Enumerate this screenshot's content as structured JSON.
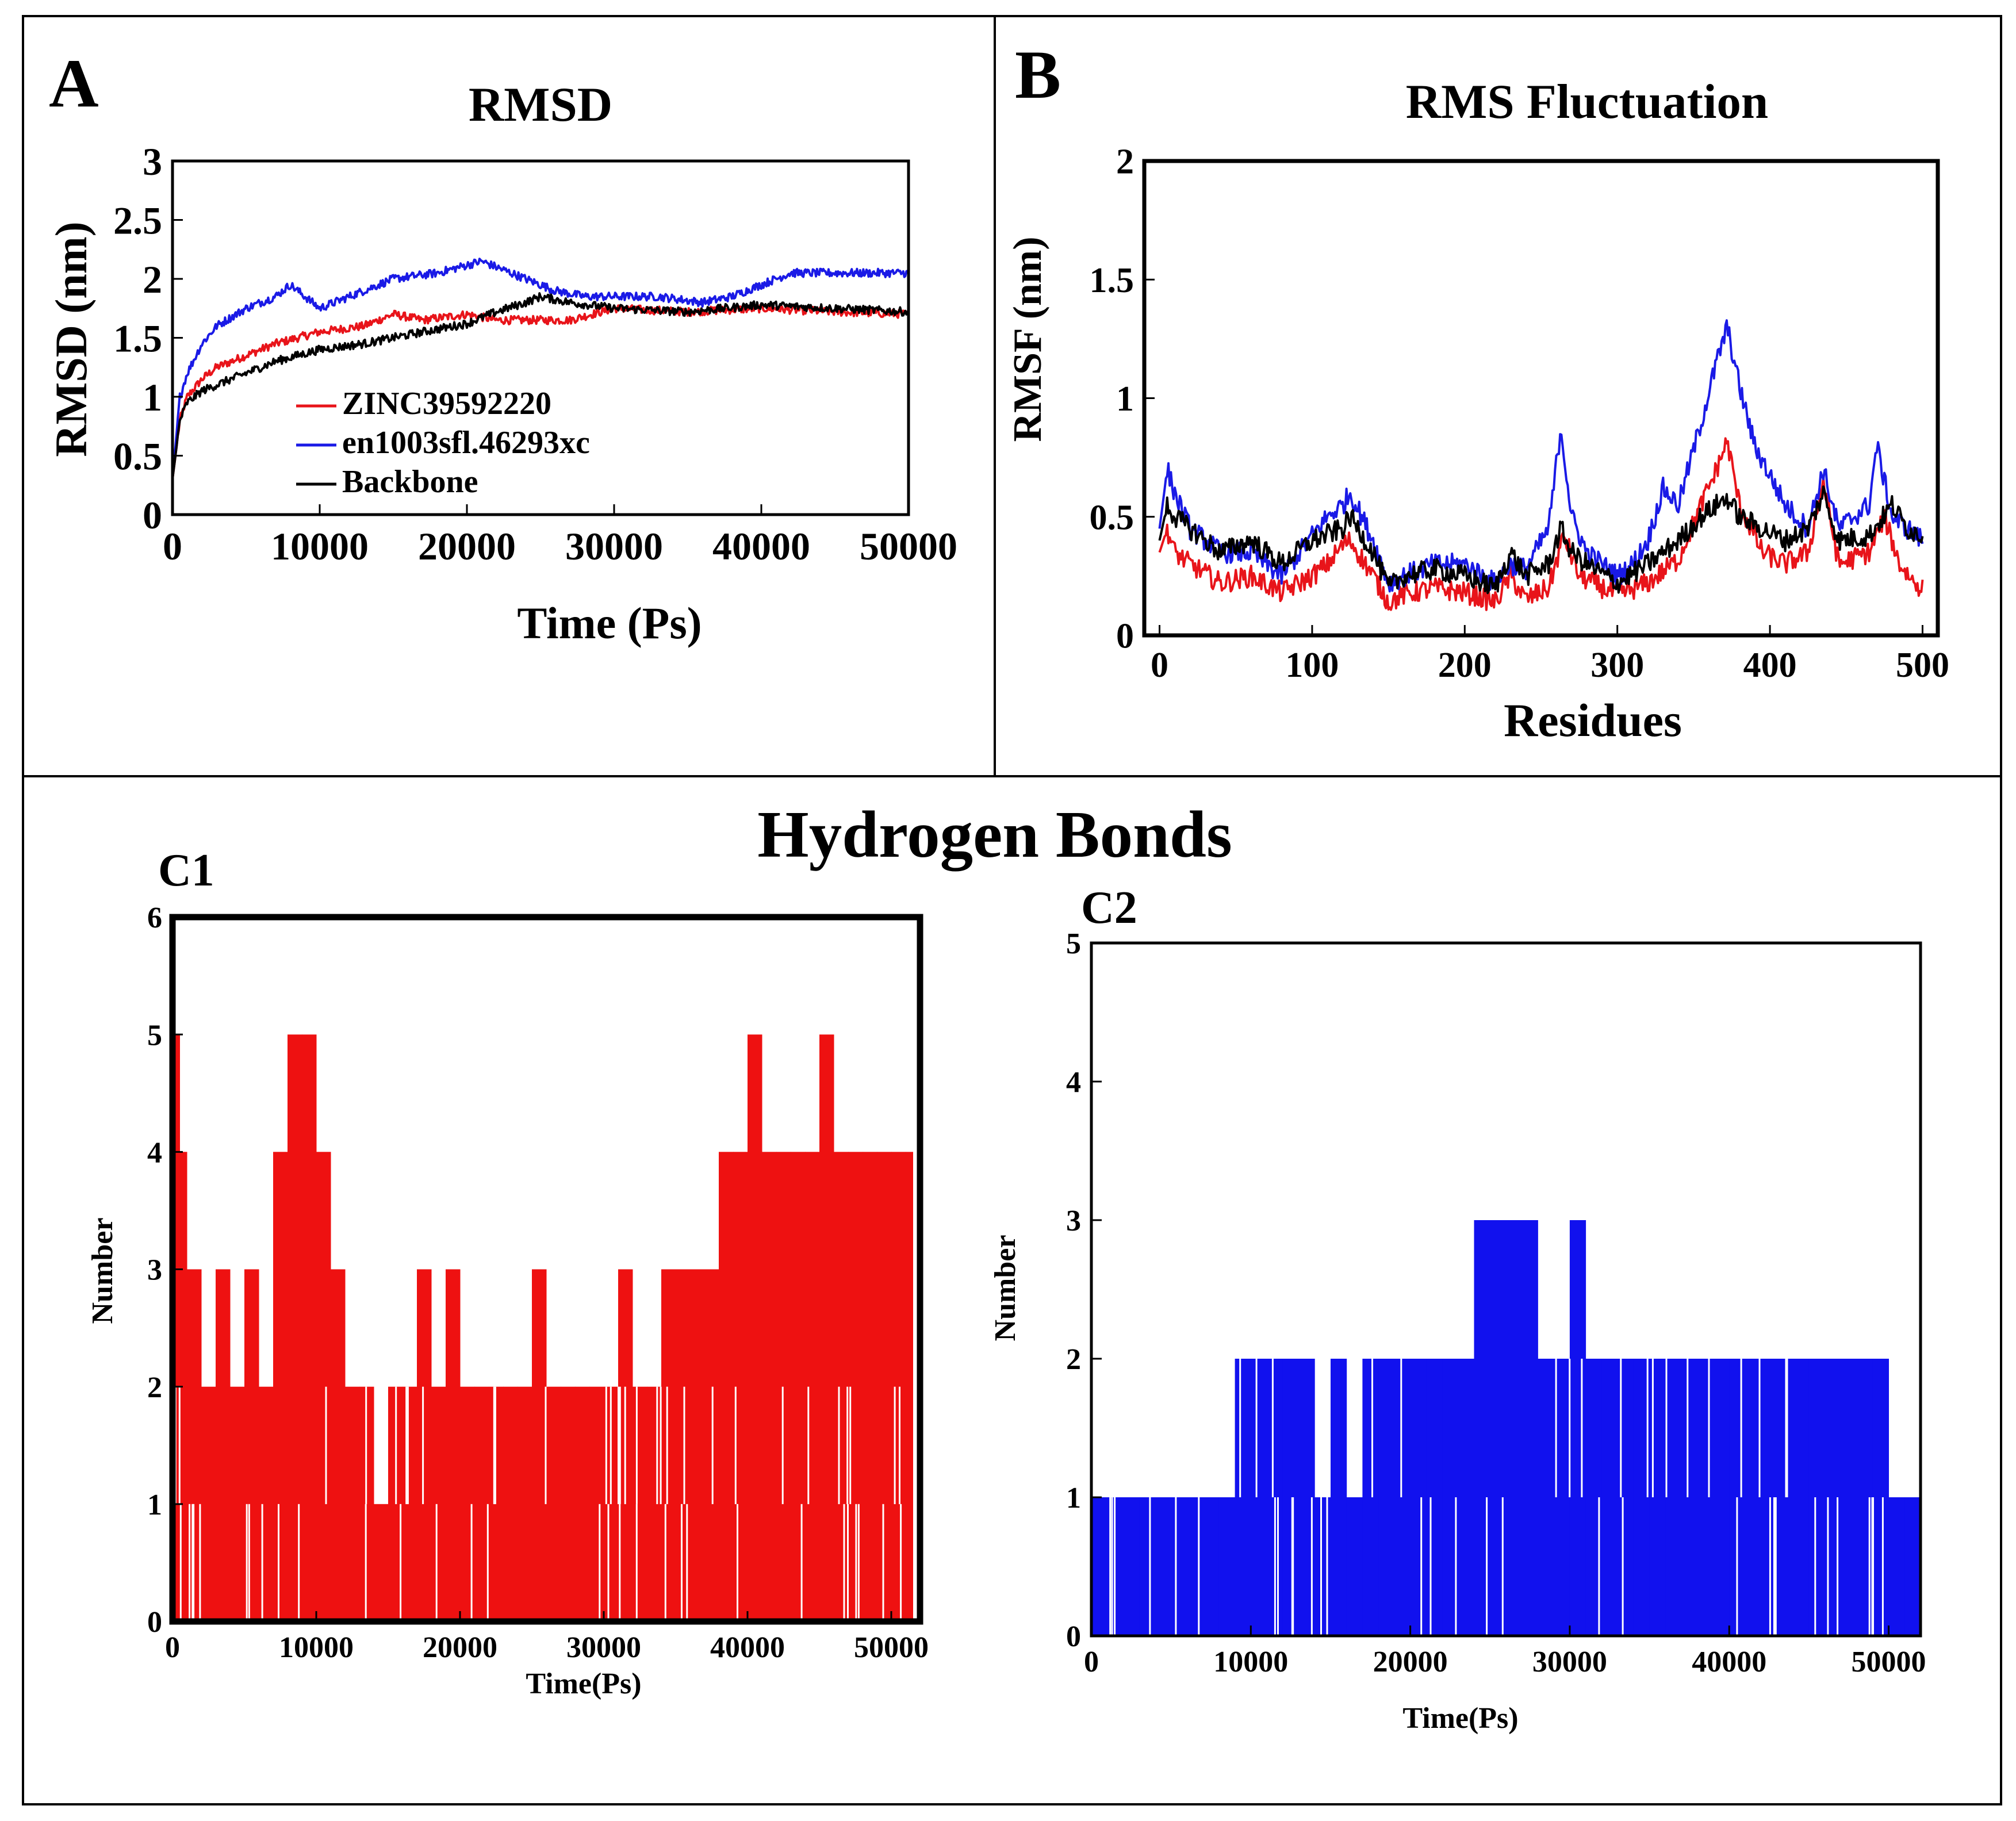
{
  "figure": {
    "panel_a_label": "A",
    "panel_b_label": "B",
    "section_c_title": "Hydrogen Bonds",
    "panel_c1_label": "C1",
    "panel_c2_label": "C2"
  },
  "chart_data": [
    {
      "id": "A",
      "type": "line",
      "title": "RMSD",
      "xlabel": "Time (Ps)",
      "ylabel": "RMSD (nm)",
      "xlim": [
        0,
        50000
      ],
      "ylim": [
        0,
        3
      ],
      "xticks": [
        0,
        10000,
        20000,
        30000,
        40000,
        50000
      ],
      "xtick_labels": [
        "0",
        "10000",
        "20000",
        "30000",
        "40000",
        "50000"
      ],
      "yticks": [
        0,
        0.5,
        1,
        1.5,
        2,
        2.5,
        3
      ],
      "ytick_labels": [
        "0",
        "0.5",
        "1",
        "1.5",
        "2",
        "2.5",
        "3"
      ],
      "legend": "inside center-left",
      "series": [
        {
          "name": "ZINC39592220",
          "color": "#e8141a",
          "x": [
            0,
            500,
            1000,
            2000,
            3000,
            5000,
            7000,
            10000,
            13000,
            15000,
            17000,
            20000,
            22000,
            25000,
            27000,
            30000,
            35000,
            40000,
            45000,
            50000
          ],
          "y": [
            0.3,
            0.8,
            1.0,
            1.15,
            1.25,
            1.35,
            1.45,
            1.55,
            1.6,
            1.7,
            1.65,
            1.7,
            1.65,
            1.65,
            1.65,
            1.75,
            1.72,
            1.75,
            1.72,
            1.7
          ]
        },
        {
          "name": "en1003sfl.46293xc",
          "color": "#1a1ae6",
          "x": [
            0,
            500,
            1000,
            2000,
            3000,
            5000,
            7000,
            8000,
            9000,
            10000,
            13000,
            15000,
            18000,
            21000,
            24000,
            26000,
            28000,
            30000,
            33000,
            36000,
            38000,
            40000,
            42000,
            45000,
            48000,
            50000
          ],
          "y": [
            0.3,
            1.0,
            1.2,
            1.45,
            1.6,
            1.75,
            1.85,
            1.95,
            1.85,
            1.75,
            1.9,
            2.0,
            2.05,
            2.15,
            2.0,
            1.9,
            1.85,
            1.85,
            1.85,
            1.8,
            1.85,
            1.95,
            2.05,
            2.05,
            2.05,
            2.05
          ]
        },
        {
          "name": "Backbone",
          "color": "#000000",
          "x": [
            0,
            500,
            1000,
            2000,
            3000,
            5000,
            7000,
            10000,
            13000,
            15000,
            17000,
            20000,
            22000,
            24000,
            25000,
            27000,
            30000,
            35000,
            40000,
            45000,
            50000
          ],
          "y": [
            0.3,
            0.8,
            0.95,
            1.05,
            1.1,
            1.2,
            1.3,
            1.4,
            1.45,
            1.5,
            1.55,
            1.62,
            1.72,
            1.8,
            1.85,
            1.8,
            1.75,
            1.72,
            1.78,
            1.75,
            1.72
          ]
        }
      ]
    },
    {
      "id": "B",
      "type": "line",
      "title": "RMS Fluctuation",
      "xlabel": "Residues",
      "ylabel": "RMSF (nm)",
      "xlim": [
        -10,
        510
      ],
      "ylim": [
        0,
        2
      ],
      "xticks": [
        0,
        100,
        200,
        300,
        400,
        500
      ],
      "xtick_labels": [
        "0",
        "100",
        "200",
        "300",
        "400",
        "500"
      ],
      "yticks": [
        0,
        0.5,
        1,
        1.5,
        2
      ],
      "ytick_labels": [
        "0",
        "0.5",
        "1",
        "1.5",
        "2"
      ],
      "series": [
        {
          "color": "#e8141a",
          "x": [
            0,
            5,
            10,
            20,
            40,
            60,
            80,
            100,
            110,
            120,
            125,
            140,
            150,
            160,
            180,
            200,
            220,
            230,
            240,
            255,
            265,
            275,
            300,
            320,
            340,
            355,
            365,
            372,
            380,
            395,
            410,
            425,
            435,
            445,
            465,
            475,
            485,
            495,
            500
          ],
          "y": [
            0.35,
            0.45,
            0.35,
            0.3,
            0.22,
            0.25,
            0.18,
            0.25,
            0.3,
            0.38,
            0.4,
            0.25,
            0.14,
            0.17,
            0.2,
            0.18,
            0.14,
            0.25,
            0.15,
            0.2,
            0.42,
            0.25,
            0.17,
            0.22,
            0.32,
            0.55,
            0.7,
            0.82,
            0.55,
            0.35,
            0.3,
            0.35,
            0.65,
            0.3,
            0.35,
            0.5,
            0.3,
            0.22,
            0.2
          ]
        },
        {
          "color": "#1a1ae6",
          "x": [
            0,
            5,
            10,
            20,
            40,
            60,
            80,
            100,
            110,
            120,
            125,
            140,
            150,
            160,
            180,
            200,
            220,
            230,
            240,
            255,
            263,
            270,
            280,
            300,
            310,
            320,
            330,
            340,
            355,
            365,
            372,
            380,
            390,
            410,
            425,
            435,
            445,
            465,
            470,
            480,
            490,
            500
          ],
          "y": [
            0.45,
            0.7,
            0.6,
            0.45,
            0.35,
            0.35,
            0.25,
            0.42,
            0.5,
            0.55,
            0.6,
            0.4,
            0.22,
            0.25,
            0.3,
            0.3,
            0.22,
            0.3,
            0.28,
            0.45,
            0.88,
            0.5,
            0.35,
            0.25,
            0.3,
            0.4,
            0.62,
            0.55,
            0.9,
            1.15,
            1.3,
            1.05,
            0.8,
            0.55,
            0.45,
            0.7,
            0.45,
            0.55,
            0.8,
            0.5,
            0.45,
            0.4
          ]
        },
        {
          "color": "#000000",
          "x": [
            0,
            5,
            10,
            20,
            40,
            60,
            80,
            100,
            120,
            125,
            140,
            150,
            160,
            180,
            200,
            220,
            230,
            240,
            255,
            263,
            270,
            280,
            300,
            320,
            340,
            355,
            365,
            372,
            380,
            395,
            410,
            425,
            435,
            445,
            465,
            480,
            490,
            500
          ],
          "y": [
            0.4,
            0.55,
            0.5,
            0.45,
            0.35,
            0.4,
            0.3,
            0.4,
            0.45,
            0.5,
            0.35,
            0.2,
            0.25,
            0.28,
            0.25,
            0.2,
            0.35,
            0.25,
            0.3,
            0.45,
            0.35,
            0.3,
            0.22,
            0.3,
            0.4,
            0.5,
            0.55,
            0.58,
            0.5,
            0.45,
            0.4,
            0.45,
            0.6,
            0.4,
            0.42,
            0.55,
            0.45,
            0.42
          ]
        }
      ]
    },
    {
      "id": "C1",
      "type": "bar",
      "xlabel": "Time(Ps)",
      "ylabel": "Number",
      "xlim": [
        0,
        52000
      ],
      "ylim": [
        0,
        6
      ],
      "xticks": [
        0,
        10000,
        20000,
        30000,
        40000,
        50000
      ],
      "xtick_labels": [
        "0",
        "10000",
        "20000",
        "30000",
        "40000",
        "50000"
      ],
      "yticks": [
        0,
        1,
        2,
        3,
        4,
        5,
        6
      ],
      "ytick_labels": [
        "0",
        "1",
        "2",
        "3",
        "4",
        "5",
        "6"
      ],
      "color": "#ee1111",
      "x": [
        0,
        500,
        1000,
        2000,
        3000,
        4000,
        5000,
        6000,
        7000,
        8000,
        9000,
        10000,
        11000,
        12000,
        13000,
        14000,
        15000,
        16000,
        17000,
        18000,
        19000,
        20000,
        21000,
        22000,
        23000,
        24000,
        25000,
        26000,
        27000,
        28000,
        29000,
        30000,
        31000,
        32000,
        33000,
        34000,
        35000,
        36000,
        37000,
        38000,
        39000,
        40000,
        41000,
        42000,
        43000,
        44000,
        45000,
        46000,
        47000,
        48000,
        49000,
        50000,
        51000
      ],
      "values": [
        5,
        4,
        3,
        2,
        3,
        2,
        3,
        2,
        4,
        5,
        5,
        4,
        3,
        2,
        2,
        1,
        2,
        2,
        3,
        2,
        3,
        2,
        2,
        2,
        2,
        2,
        3,
        2,
        2,
        2,
        2,
        2,
        3,
        2,
        2,
        3,
        3,
        3,
        3,
        4,
        4,
        5,
        4,
        4,
        4,
        4,
        5,
        4,
        4,
        4,
        4,
        4,
        4
      ]
    },
    {
      "id": "C2",
      "type": "bar",
      "xlabel": "Time(Ps)",
      "ylabel": "Number",
      "xlim": [
        0,
        52000
      ],
      "ylim": [
        0,
        5
      ],
      "xticks": [
        0,
        10000,
        20000,
        30000,
        40000,
        50000
      ],
      "xtick_labels": [
        "0",
        "10000",
        "20000",
        "30000",
        "40000",
        "50000"
      ],
      "yticks": [
        0,
        1,
        2,
        3,
        4,
        5
      ],
      "ytick_labels": [
        "0",
        "1",
        "2",
        "3",
        "4",
        "5"
      ],
      "color": "#1111ee",
      "x": [
        0,
        1000,
        2000,
        3000,
        4000,
        5000,
        6000,
        7000,
        8000,
        9000,
        10000,
        11000,
        12000,
        13000,
        14000,
        15000,
        16000,
        17000,
        18000,
        19000,
        20000,
        21000,
        22000,
        23000,
        24000,
        25000,
        26000,
        27000,
        28000,
        29000,
        30000,
        31000,
        32000,
        33000,
        34000,
        35000,
        36000,
        37000,
        38000,
        39000,
        40000,
        41000,
        42000,
        43000,
        44000,
        45000,
        46000,
        47000,
        48000,
        49000,
        50000,
        51000
      ],
      "values": [
        1,
        1,
        1,
        1,
        1,
        1,
        1,
        1,
        1,
        2,
        2,
        2,
        2,
        2,
        1,
        2,
        1,
        2,
        2,
        2,
        2,
        2,
        2,
        2,
        3,
        3,
        3,
        3,
        2,
        2,
        3,
        2,
        2,
        2,
        2,
        2,
        2,
        2,
        2,
        2,
        2,
        2,
        2,
        2,
        2,
        2,
        2,
        2,
        2,
        2,
        1,
        1
      ]
    }
  ]
}
